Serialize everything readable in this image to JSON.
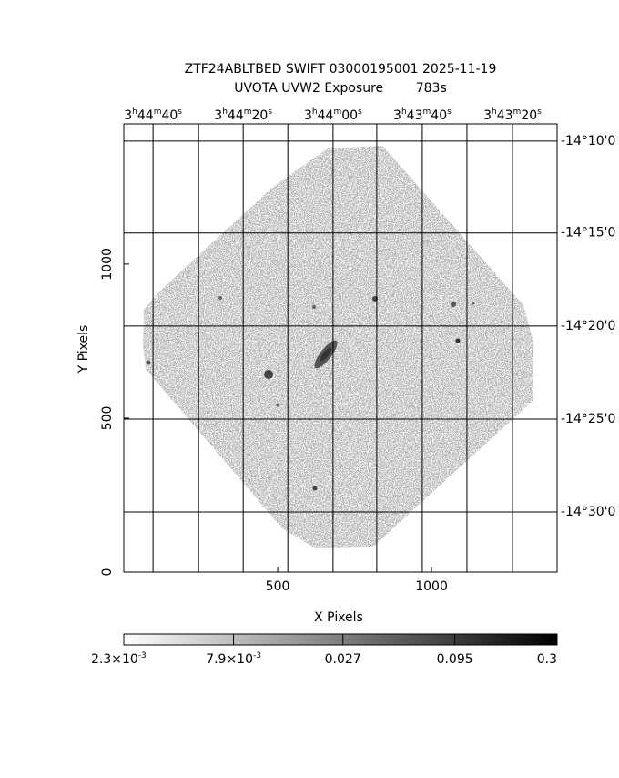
{
  "chart_data": {
    "type": "image",
    "title": "ZTF24ABLTBED SWIFT 03000195001 2025-11-19",
    "subtitle": "UVOTA UVW2 Exposure        783s",
    "x_label": "X Pixels",
    "y_label": "Y Pixels",
    "xlim": [
      0,
      1408
    ],
    "ylim": [
      0,
      1455
    ],
    "xticks": [
      500,
      1000
    ],
    "yticks": [
      0,
      500,
      1000
    ],
    "ra_ticks": [
      {
        "value": 95,
        "label": "3h44m40s"
      },
      {
        "value": 388,
        "label": "3h44m20s"
      },
      {
        "value": 680,
        "label": "3h44m00s"
      },
      {
        "value": 970,
        "label": "3h43m40s"
      },
      {
        "value": 1263,
        "label": "3h43m20s"
      }
    ],
    "ra_minor": [
      243,
      533,
      822,
      1115
    ],
    "dec_ticks": [
      {
        "value": 1399,
        "label": "-14°10'0"
      },
      {
        "value": 1101,
        "label": "-14°15'0"
      },
      {
        "value": 799,
        "label": "-14°20'0"
      },
      {
        "value": 497,
        "label": "-14°25'0"
      },
      {
        "value": 195,
        "label": "-14°30'0"
      }
    ],
    "color_scale": "log",
    "clim": [
      0.0023,
      0.3
    ],
    "cticks": [
      {
        "value": 0.0023,
        "label": "2.3×10-3"
      },
      {
        "value": 0.0079,
        "label": "7.9×10-3"
      },
      0.027,
      0.095,
      0.3
    ]
  }
}
